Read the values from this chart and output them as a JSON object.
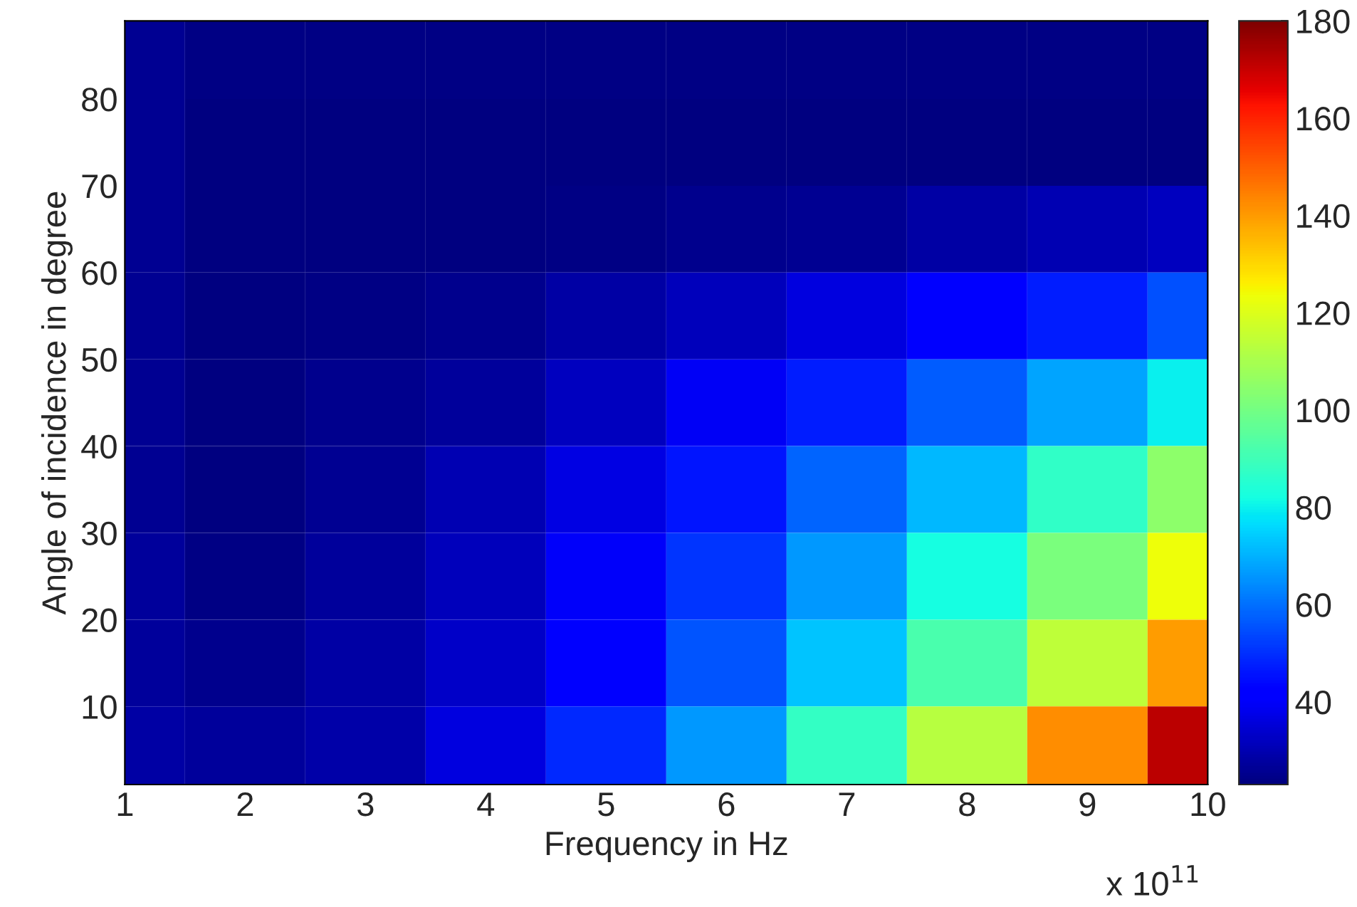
{
  "chart_data": {
    "type": "heatmap",
    "xlabel": "Frequency in Hz",
    "ylabel": "Angle of incidence in degree",
    "annotations": [
      "x 10$^{11}$"
    ],
    "x": [
      1,
      2,
      3,
      4,
      5,
      6,
      7,
      8,
      9,
      10
    ],
    "y": [
      85,
      75,
      65,
      55,
      45,
      35,
      25,
      15,
      5
    ],
    "cells": [
      [
        26,
        24,
        24,
        24,
        24,
        24,
        24,
        24,
        24,
        24
      ],
      [
        26,
        22,
        22,
        22,
        23,
        23,
        23,
        23,
        23,
        23
      ],
      [
        26,
        22,
        23,
        23,
        24,
        25,
        26,
        28,
        30,
        32
      ],
      [
        26,
        23,
        24,
        25,
        28,
        31,
        36,
        41,
        47,
        55
      ],
      [
        26,
        23,
        25,
        27,
        32,
        39,
        47,
        57,
        68,
        80
      ],
      [
        26,
        23,
        26,
        30,
        37,
        46,
        58,
        71,
        87,
        105
      ],
      [
        27,
        24,
        27,
        31,
        40,
        51,
        66,
        82,
        101,
        123
      ],
      [
        27,
        25,
        28,
        33,
        43,
        56,
        73,
        92,
        114,
        140
      ],
      [
        28,
        27,
        29,
        36,
        49,
        66,
        88,
        113,
        142,
        172
      ]
    ],
    "xlim": [
      1,
      10
    ],
    "ylim": [
      1,
      89
    ],
    "xticks": [
      1,
      2,
      3,
      4,
      5,
      6,
      7,
      8,
      9,
      10
    ],
    "yticks": [
      10,
      20,
      30,
      40,
      50,
      60,
      70,
      80
    ],
    "clim": [
      23,
      180
    ],
    "cticks": [
      40,
      60,
      80,
      100,
      120,
      140,
      160,
      180
    ]
  }
}
